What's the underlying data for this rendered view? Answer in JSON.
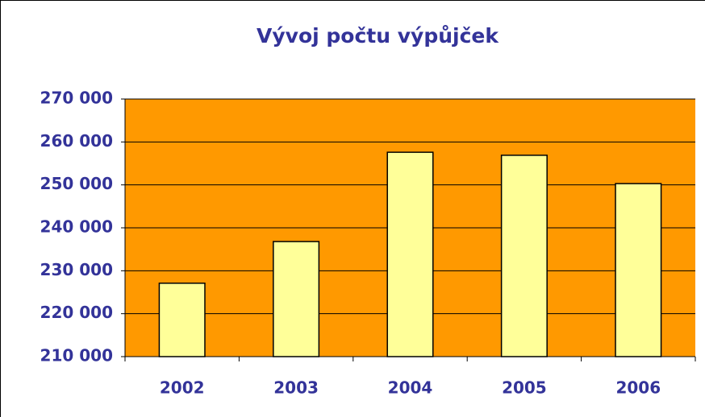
{
  "chart_data": {
    "type": "bar",
    "title": "Vývoj počtu výpůjček",
    "categories": [
      "2002",
      "2003",
      "2004",
      "2005",
      "2006"
    ],
    "values": [
      227100,
      236800,
      257600,
      256900,
      250300
    ],
    "color": "#ffff99",
    "background": "#ff9900",
    "ylim": [
      210000,
      270000
    ],
    "yticks": [
      {
        "value": 210000,
        "label": "210 000"
      },
      {
        "value": 220000,
        "label": "220 000"
      },
      {
        "value": 230000,
        "label": "230 000"
      },
      {
        "value": 240000,
        "label": "240 000"
      },
      {
        "value": 250000,
        "label": "250 000"
      },
      {
        "value": 260000,
        "label": "260 000"
      },
      {
        "value": 270000,
        "label": "270 000"
      }
    ],
    "grid": true
  }
}
